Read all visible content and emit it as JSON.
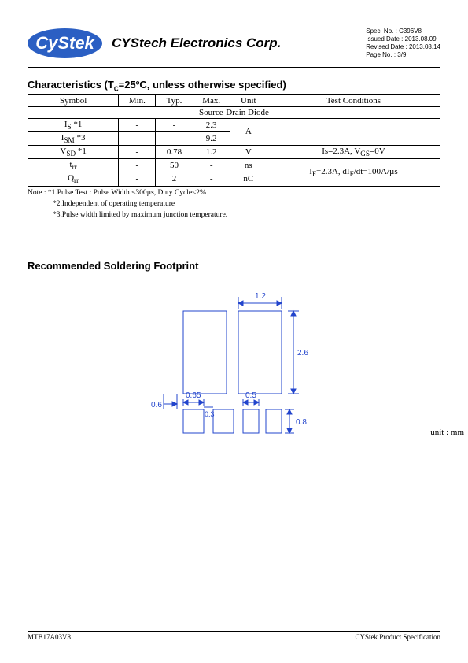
{
  "header": {
    "logo_text": "CyStek",
    "company": "CYStech Electronics Corp.",
    "spec_no_label": "Spec. No. :",
    "spec_no": "C396V8",
    "issued_label": "Issued Date :",
    "issued": "2013.08.09",
    "revised_label": "Revised Date :",
    "revised": "2013.08.14",
    "page_label": "Page No. :",
    "page": "3/9"
  },
  "characteristics": {
    "title": "Characteristics (T",
    "title_sub": "C",
    "title_rest": "=25ºC, unless otherwise specified)",
    "headers": [
      "Symbol",
      "Min.",
      "Typ.",
      "Max.",
      "Unit",
      "Test Conditions"
    ],
    "subheader": "Source-Drain Diode",
    "rows": [
      {
        "symbol_html": "I<sub>S</sub>  *1",
        "min": "-",
        "typ": "-",
        "max": "2.3",
        "unit": "A",
        "cond": ""
      },
      {
        "symbol_html": "I<sub>SM</sub> *3",
        "min": "-",
        "typ": "-",
        "max": "9.2",
        "unit": "",
        "cond": ""
      },
      {
        "symbol_html": "V<sub>SD</sub> *1",
        "min": "-",
        "typ": "0.78",
        "max": "1.2",
        "unit": "V",
        "cond": "Is=2.3A, V<sub>GS</sub>=0V"
      },
      {
        "symbol_html": "t<sub>rr</sub>",
        "min": "-",
        "typ": "50",
        "max": "-",
        "unit": "ns",
        "cond": "I<sub>F</sub>=2.3A, dI<sub>F</sub>/dt=100A/µs"
      },
      {
        "symbol_html": "Q<sub>rr</sub>",
        "min": "-",
        "typ": "2",
        "max": "-",
        "unit": "nC",
        "cond": ""
      }
    ],
    "note1": "Note : *1.Pulse Test : Pulse Width ≤300µs, Duty Cycle≤2%",
    "note2": "*2.Independent of operating temperature",
    "note3": "*3.Pulse width limited by maximum junction temperature."
  },
  "footprint": {
    "title": "Recommended Soldering Footprint",
    "unit_label": "unit : mm",
    "dims": {
      "top_w": "1.2",
      "main_h": "2.6",
      "left_gap": "0.6",
      "small_w": "0.65",
      "gap_small": "0.3",
      "right_w": "0.5",
      "small_h": "0.8"
    },
    "colors": {
      "outline": "#2244cc",
      "dim_line": "#2244cc",
      "bg": "#ffffff"
    }
  },
  "footer": {
    "left": "MTB17A03V8",
    "right": "CYStek Product Specification"
  }
}
